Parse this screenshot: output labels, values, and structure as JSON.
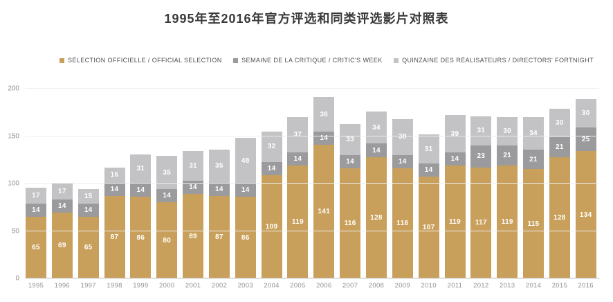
{
  "title": "1995年至2016年官方评选和同类评选影片对照表",
  "legend": [
    {
      "key": "official-selection",
      "label": "SÉLECTION OFFICIELLE / OFFICIAL SELECTION",
      "color": "#c9a05b"
    },
    {
      "key": "critics-week",
      "label": "SEMAINE DE LA CRITIQUE / CRITIC'S WEEK",
      "color": "#9b9a9c"
    },
    {
      "key": "directors-fortnight",
      "label": "QUINZAINE DES RÉALISATEURS / DIRECTORS' FORTNIGHT",
      "color": "#c3c2c4"
    }
  ],
  "chart_data": {
    "type": "bar",
    "stacked": true,
    "title": "1995年至2016年官方评选和同类评选影片对照表",
    "categories": [
      "1995",
      "1996",
      "1997",
      "1998",
      "1999",
      "2000",
      "2001",
      "2002",
      "2003",
      "2004",
      "2005",
      "2006",
      "2007",
      "2008",
      "2009",
      "2010",
      "2011",
      "2012",
      "2013",
      "2014",
      "2015",
      "2016"
    ],
    "series": [
      {
        "key": "official-selection",
        "name": "SÉLECTION OFFICIELLE / OFFICIAL SELECTION",
        "color": "#c9a05b",
        "values": [
          65,
          69,
          65,
          87,
          86,
          80,
          89,
          87,
          86,
          109,
          119,
          141,
          116,
          128,
          116,
          107,
          119,
          117,
          119,
          115,
          128,
          134
        ]
      },
      {
        "key": "critics-week",
        "name": "SEMAINE DE LA CRITIQUE / CRITIC'S WEEK",
        "color": "#9b9a9c",
        "values": [
          14,
          14,
          14,
          14,
          14,
          14,
          14,
          14,
          14,
          14,
          14,
          14,
          14,
          14,
          14,
          14,
          14,
          23,
          21,
          21,
          21,
          25
        ]
      },
      {
        "key": "directors-fortnight",
        "name": "QUINZAINE DES RÉALISATEURS / DIRECTORS' FORTNIGHT",
        "color": "#c3c2c4",
        "values": [
          17,
          17,
          15,
          16,
          31,
          35,
          31,
          35,
          48,
          32,
          37,
          36,
          33,
          34,
          38,
          31,
          39,
          31,
          30,
          34,
          30,
          30
        ]
      }
    ],
    "xlabel": "",
    "ylabel": "",
    "ylim": [
      0,
      200
    ],
    "yticks": [
      0,
      50,
      100,
      150,
      200
    ],
    "grid": true,
    "legend_position": "top"
  }
}
